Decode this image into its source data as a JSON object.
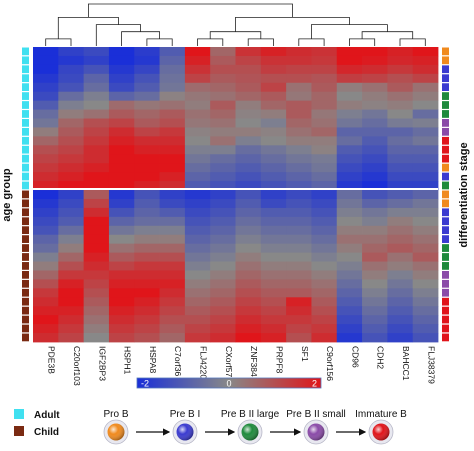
{
  "chart_data": {
    "type": "heatmap",
    "genes": [
      "PDE3B",
      "C20orf103",
      "IGF2BP3",
      "HSPH1",
      "HSPA8",
      "C7orf36",
      "FLJ42200",
      "CXorf57",
      "ZNF384",
      "PRPF8",
      "SF1",
      "C9orf156",
      "CD96",
      "CDH2",
      "BAHCC1",
      "FLJ38379"
    ],
    "left_axis_label": "age group",
    "right_axis_label": "differentiation stage",
    "scale": {
      "min_label": "-2",
      "mid_label": "0",
      "max_label": "2",
      "min_color": "#1a2fd8",
      "mid_color": "#888888",
      "max_color": "#e0151a"
    },
    "adult_sample_count": 16,
    "child_sample_count": 17,
    "colors": {
      "Adult": "#40e0f0",
      "Child": "#7a2a12",
      "Pro B": "#f08a1e",
      "Pre B I": "#3a3ad0",
      "Pre B II large": "#1e8a3c",
      "Pre B II small": "#8a4aa8",
      "Immature B": "#e0141a"
    },
    "stage_column": [
      "Pro B",
      "Pro B",
      "Pre B I",
      "Pre B I",
      "Pre B I",
      "Pre B II large",
      "Pre B II large",
      "Pre B II large",
      "Pre B II small",
      "Pre B II small",
      "Immature B",
      "Immature B",
      "Immature B",
      "Pro B",
      "Pre B I",
      "Pre B II large",
      "Pro B",
      "Pro B",
      "Pre B I",
      "Pre B I",
      "Pre B I",
      "Pre B I",
      "Pre B II large",
      "Pre B II large",
      "Pre B II large",
      "Pre B II small",
      "Pre B II small",
      "Pre B II small",
      "Immature B",
      "Immature B",
      "Immature B",
      "Immature B",
      "Immature B"
    ],
    "values": [
      [
        -2,
        -1.6,
        -1.4,
        -2,
        -1.7,
        -1,
        2,
        0.6,
        1.5,
        1.8,
        1.6,
        1.5,
        2,
        2,
        1.8,
        2
      ],
      [
        -2,
        -1.8,
        -1.6,
        -2,
        -1.8,
        -0.8,
        1.8,
        0.8,
        1.2,
        1.5,
        1.5,
        1.4,
        2,
        1.9,
        1.7,
        1.8
      ],
      [
        -2,
        -1.5,
        -1.2,
        -1.8,
        -1.5,
        -0.6,
        1.5,
        1,
        1,
        1.3,
        1.2,
        1.2,
        1.7,
        1.6,
        1.4,
        1.6
      ],
      [
        -1.8,
        -1.4,
        -0.8,
        -1.6,
        -1.2,
        -0.5,
        1.2,
        0.8,
        0.9,
        1,
        1,
        0.9,
        1.3,
        1.2,
        1,
        1.2
      ],
      [
        -1.6,
        -1.2,
        -0.6,
        -1.4,
        -1,
        -0.4,
        0.5,
        0.6,
        0.8,
        1.2,
        0.4,
        0.8,
        0.2,
        0.4,
        0.8,
        0.4
      ],
      [
        -1.4,
        -0.6,
        -0.2,
        -0.8,
        -0.6,
        0.1,
        0.3,
        0.4,
        0.6,
        0.8,
        0.3,
        0.6,
        0,
        0.2,
        0.4,
        0.2
      ],
      [
        -1,
        -0.2,
        0,
        0.5,
        0.3,
        0.4,
        0.2,
        0.8,
        0.2,
        0.6,
        0.8,
        0.6,
        0.2,
        0.1,
        0.2,
        0
      ],
      [
        -0.6,
        0.2,
        0.4,
        0.8,
        0.6,
        0.8,
        0.4,
        0.6,
        0.1,
        0.2,
        0.8,
        0.3,
        -0.2,
        -0.4,
        0,
        -0.6
      ],
      [
        -0.4,
        0.6,
        1,
        1.2,
        0.8,
        1,
        0.3,
        0.4,
        0,
        -0.2,
        0.6,
        0.4,
        -0.4,
        -0.6,
        -0.3,
        -0.2
      ],
      [
        0.2,
        0.8,
        1.2,
        1.6,
        1.2,
        1.4,
        0.1,
        0.2,
        0.2,
        0.1,
        0.4,
        0.6,
        -0.8,
        -0.8,
        -0.8,
        -0.6
      ],
      [
        0.6,
        1,
        1.4,
        1.8,
        1.6,
        1.6,
        0,
        0.4,
        -0.2,
        0,
        0.2,
        0.2,
        -0.6,
        -1,
        -0.6,
        -0.4
      ],
      [
        1,
        1.2,
        1.6,
        2,
        1.8,
        1.8,
        -0.2,
        -0.2,
        -0.6,
        -0.4,
        -0.2,
        0.1,
        -1,
        -1.2,
        -0.8,
        -0.8
      ],
      [
        1.2,
        1.4,
        1.6,
        2,
        2,
        2,
        -0.4,
        -0.6,
        -0.8,
        -0.6,
        -0.4,
        -0.3,
        -1.2,
        -1.4,
        -1,
        -1
      ],
      [
        1.4,
        1.6,
        1.8,
        2,
        2,
        2,
        -0.6,
        -0.8,
        -1,
        -0.8,
        -0.6,
        -0.4,
        -1.4,
        -1.6,
        -1.2,
        -1.2
      ],
      [
        1.6,
        1.8,
        2,
        2,
        2,
        1.8,
        -0.8,
        -1,
        -1.2,
        -1,
        -0.8,
        -0.6,
        -1.6,
        -1.8,
        -1.4,
        -1.4
      ],
      [
        1.8,
        2,
        2,
        2,
        1.8,
        1.6,
        -1,
        -1.2,
        -1.4,
        -1.2,
        -1,
        -0.8,
        -1.8,
        -2,
        -1.6,
        -1.6
      ],
      [
        -2,
        -1.6,
        0.8,
        -1.8,
        -1.2,
        -1.6,
        -1.8,
        -1.6,
        -1.2,
        -1.6,
        -1.4,
        -1.6,
        -0.6,
        -1.2,
        -1,
        -0.8
      ],
      [
        -1.8,
        -1.4,
        1.2,
        -1.6,
        -1,
        -1.4,
        -1.6,
        -1.4,
        -1,
        -1.4,
        -1.2,
        -1.4,
        -0.4,
        -0.8,
        -0.6,
        -0.4
      ],
      [
        -1.6,
        -1.2,
        1.6,
        -1.2,
        -0.8,
        -1,
        -1.4,
        -1.2,
        -0.8,
        -1,
        -1,
        -1.2,
        -0.2,
        -0.4,
        -0.2,
        -0.2
      ],
      [
        -1.4,
        -1,
        2,
        -0.8,
        -0.6,
        -0.6,
        -1.2,
        -1,
        -0.6,
        -0.8,
        -0.8,
        -1,
        0,
        -0.2,
        0.2,
        0
      ],
      [
        -1.2,
        -0.6,
        2,
        -0.4,
        -0.2,
        -0.2,
        -1,
        -0.8,
        -0.4,
        -0.6,
        -0.6,
        -0.8,
        0.2,
        0.2,
        0.4,
        0.2
      ],
      [
        -0.8,
        -0.2,
        2,
        0,
        0.2,
        0.2,
        -0.8,
        -0.6,
        -0.2,
        -0.4,
        -0.4,
        -0.6,
        0.4,
        0.4,
        0.6,
        0.4
      ],
      [
        -0.6,
        0.2,
        2,
        0.4,
        0.6,
        0.6,
        -0.6,
        -0.4,
        0,
        -0.2,
        -0.2,
        -0.4,
        0.2,
        0.6,
        0.8,
        0.6
      ],
      [
        -0.2,
        0.6,
        1.8,
        0.8,
        1,
        1,
        -0.4,
        -0.2,
        0.2,
        0,
        0,
        -0.2,
        0,
        0.8,
        0.4,
        0.8
      ],
      [
        0.2,
        1,
        1.6,
        1.2,
        1.4,
        1.4,
        -0.2,
        0,
        0.4,
        0.2,
        0.2,
        0,
        -0.2,
        0.4,
        0.2,
        0.4
      ],
      [
        0.6,
        1.4,
        1.4,
        1.6,
        1.6,
        1.6,
        0,
        0.2,
        0.6,
        0.4,
        0.4,
        0.2,
        -0.4,
        0.2,
        -0.2,
        0.2
      ],
      [
        1,
        1.8,
        1.2,
        1.8,
        1.8,
        1.8,
        0.2,
        0.4,
        0.8,
        0.6,
        0.6,
        0.4,
        -0.6,
        0,
        -0.4,
        0
      ],
      [
        1.4,
        2,
        1,
        2,
        2,
        1.6,
        0.4,
        0.6,
        1,
        0.8,
        0.8,
        0.6,
        -0.8,
        -0.2,
        -0.6,
        -0.2
      ],
      [
        1.6,
        2,
        0.8,
        2,
        1.8,
        1.4,
        0.6,
        0.8,
        1.2,
        1,
        1.8,
        0.8,
        -1,
        -0.4,
        -0.8,
        -0.4
      ],
      [
        1.8,
        1.8,
        0.6,
        1.8,
        1.6,
        1.2,
        0.8,
        1,
        1.4,
        1.2,
        1.6,
        1,
        -1.2,
        -0.6,
        -1,
        -0.6
      ],
      [
        2,
        1.6,
        0.4,
        1.6,
        1.4,
        1,
        1,
        1.2,
        1.6,
        1.4,
        1.4,
        1.2,
        -1.4,
        -0.8,
        -1.2,
        -0.8
      ],
      [
        1.8,
        1.4,
        0.2,
        1.4,
        1.2,
        0.8,
        1.2,
        1.4,
        1.8,
        1.6,
        1.2,
        1.4,
        -1.6,
        -1,
        -1.4,
        -1
      ],
      [
        1.6,
        1.2,
        0,
        1.2,
        1,
        0.6,
        1.4,
        1.6,
        2,
        1.8,
        1,
        1.6,
        -1.8,
        -1.2,
        -1.6,
        -1.2
      ]
    ]
  },
  "age_legend": [
    {
      "label": "Adult",
      "color": "#40e0f0"
    },
    {
      "label": "Child",
      "color": "#7a2a12"
    }
  ],
  "stages": [
    {
      "label": "Pro B",
      "color": "#f08a1e"
    },
    {
      "label": "Pre B I",
      "color": "#3a3ad0"
    },
    {
      "label": "Pre B II large",
      "color": "#1e8a3c"
    },
    {
      "label": "Pre B II small",
      "color": "#8a4aa8"
    },
    {
      "label": "Immature B",
      "color": "#e0141a"
    }
  ]
}
